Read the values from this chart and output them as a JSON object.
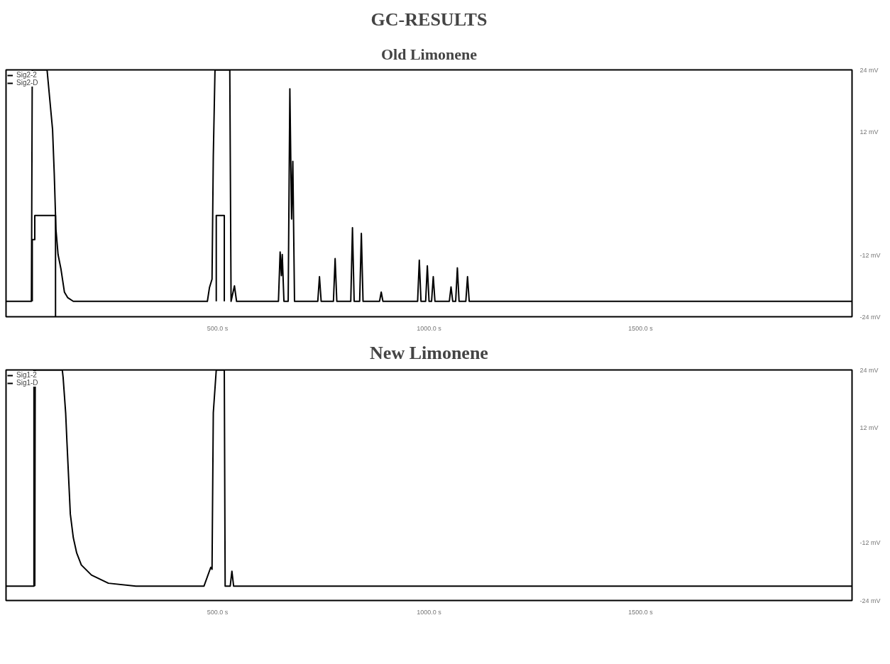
{
  "chart_data": [
    {
      "type": "line",
      "title": "GC-RESULTS",
      "subtitle": "Old Limonene",
      "legend": "top left",
      "grid": false,
      "xlim": [
        0,
        2000
      ],
      "xticks": [
        {
          "value": 500,
          "label": "500.0 s"
        },
        {
          "value": 1000,
          "label": "1000.0 s"
        },
        {
          "value": 1500,
          "label": "1500.0 s"
        }
      ],
      "ylim": [
        -24,
        24
      ],
      "yticks": [
        {
          "value": 24,
          "label": "24 mV"
        },
        {
          "value": 12,
          "label": "12 mV"
        },
        {
          "value": -12,
          "label": "-12 mV"
        },
        {
          "value": -24,
          "label": "-24 mV"
        }
      ],
      "series": [
        {
          "name": "Sig2-2",
          "color": "#000000",
          "x": [
            0,
            60,
            62,
            97,
            110,
            114,
            118,
            123,
            130,
            138,
            146,
            159,
            476,
            481,
            487,
            490,
            494,
            529,
            532,
            540,
            545,
            644,
            648,
            651,
            653,
            657,
            667,
            671,
            675,
            678,
            682,
            737,
            741,
            745,
            774,
            778,
            782,
            815,
            819,
            823,
            836,
            840,
            844,
            883,
            887,
            891,
            973,
            977,
            981,
            992,
            996,
            1000,
            1006,
            1010,
            1014,
            1048,
            1052,
            1056,
            1063,
            1067,
            1071,
            1087,
            1091,
            1095,
            2000
          ],
          "values": [
            -21,
            -21,
            24,
            24,
            12.4,
            3.8,
            -7,
            -11.9,
            -14.8,
            -19.2,
            -20.3,
            -21,
            -21,
            -18.3,
            -16.7,
            7.2,
            24,
            24,
            -21,
            -18,
            -21,
            -21,
            -11.4,
            -16,
            -11.9,
            -21,
            -21,
            20.3,
            -5,
            6.2,
            -21,
            -21,
            -16.2,
            -21,
            -21,
            -12.7,
            -21,
            -21,
            -6.7,
            -21,
            -21,
            -7.8,
            -21,
            -21,
            -19.2,
            -21,
            -21,
            -13,
            -21,
            -21,
            -14.1,
            -21,
            -21,
            -16.2,
            -21,
            -21,
            -18.2,
            -21,
            -21,
            -14.5,
            -21,
            -21,
            -16.2,
            -21,
            -21
          ]
        },
        {
          "name": "Sig2-D",
          "color": "#000000",
          "x": [
            62,
            62,
            68,
            68,
            117,
            117,
            null,
            497,
            497,
            516,
            516
          ],
          "values": [
            -21,
            -9,
            -9,
            -4.3,
            -4.3,
            -24,
            null,
            -21,
            -4.3,
            -4.3,
            -21
          ]
        }
      ]
    },
    {
      "type": "line",
      "title": "New Limonene",
      "legend": "top left",
      "grid": false,
      "xlim": [
        0,
        2000
      ],
      "xticks": [
        {
          "value": 500,
          "label": "500.0 s"
        },
        {
          "value": 1000,
          "label": "1000.0 s"
        },
        {
          "value": 1500,
          "label": "1500.0 s"
        }
      ],
      "ylim": [
        -24,
        24
      ],
      "yticks": [
        {
          "value": 24,
          "label": "24 mV"
        },
        {
          "value": 12,
          "label": "12 mV"
        },
        {
          "value": -12,
          "label": "-12 mV"
        },
        {
          "value": -24,
          "label": "-24 mV"
        }
      ],
      "series": [
        {
          "name": "Sig1-2",
          "color": "#000000",
          "x": [
            68,
            69,
            133,
            135,
            141,
            144,
            148,
            152,
            159,
            167,
            178,
            202,
            242,
            307,
            468,
            484,
            487,
            490,
            497,
            516,
            518,
            530,
            534,
            538,
            2000
          ],
          "values": [
            -21,
            24,
            24,
            22.4,
            15,
            9,
            1.5,
            -6,
            -10.9,
            -14.1,
            -16.6,
            -18.7,
            -20.4,
            -21,
            -21,
            -17.1,
            -17.5,
            15.1,
            24,
            24,
            -21,
            -21,
            -17.9,
            -21,
            -21
          ]
        },
        {
          "name": "Sig1-D",
          "color": "#000000",
          "x": [
            0,
            66,
            66
          ],
          "values": [
            -21,
            -21,
            24
          ]
        }
      ]
    }
  ]
}
